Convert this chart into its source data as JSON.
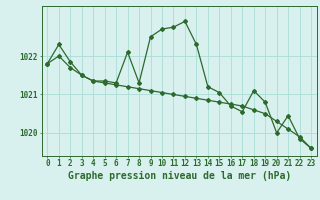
{
  "series1": {
    "x": [
      0,
      1,
      2,
      3,
      4,
      5,
      6,
      7,
      8,
      9,
      10,
      11,
      12,
      13,
      14,
      15,
      16,
      17,
      18,
      19,
      20,
      21,
      22,
      23
    ],
    "y": [
      1021.8,
      1022.3,
      1021.85,
      1021.5,
      1021.35,
      1021.35,
      1021.3,
      1022.1,
      1021.3,
      1022.5,
      1022.7,
      1022.75,
      1022.9,
      1022.3,
      1021.2,
      1021.05,
      1020.7,
      1020.55,
      1021.1,
      1020.8,
      1020.0,
      1020.45,
      1019.85,
      1019.6
    ]
  },
  "series2": {
    "x": [
      0,
      1,
      2,
      3,
      4,
      5,
      6,
      7,
      8,
      9,
      10,
      11,
      12,
      13,
      14,
      15,
      16,
      17,
      18,
      19,
      20,
      21,
      22,
      23
    ],
    "y": [
      1021.8,
      1022.0,
      1021.7,
      1021.5,
      1021.35,
      1021.3,
      1021.25,
      1021.2,
      1021.15,
      1021.1,
      1021.05,
      1021.0,
      1020.95,
      1020.9,
      1020.85,
      1020.8,
      1020.75,
      1020.7,
      1020.6,
      1020.5,
      1020.3,
      1020.1,
      1019.9,
      1019.6
    ]
  },
  "line_color": "#2d6a2d",
  "marker_color": "#2d6a2d",
  "bg_color": "#d8f0ee",
  "grid_color": "#aaddd8",
  "axis_color": "#2d6a2d",
  "xlabel": "Graphe pression niveau de la mer (hPa)",
  "xlabel_fontsize": 7,
  "tick_fontsize": 5.5,
  "ylim": [
    1019.4,
    1023.3
  ],
  "yticks": [
    1020,
    1021,
    1022
  ],
  "xticks": [
    0,
    1,
    2,
    3,
    4,
    5,
    6,
    7,
    8,
    9,
    10,
    11,
    12,
    13,
    14,
    15,
    16,
    17,
    18,
    19,
    20,
    21,
    22,
    23
  ]
}
